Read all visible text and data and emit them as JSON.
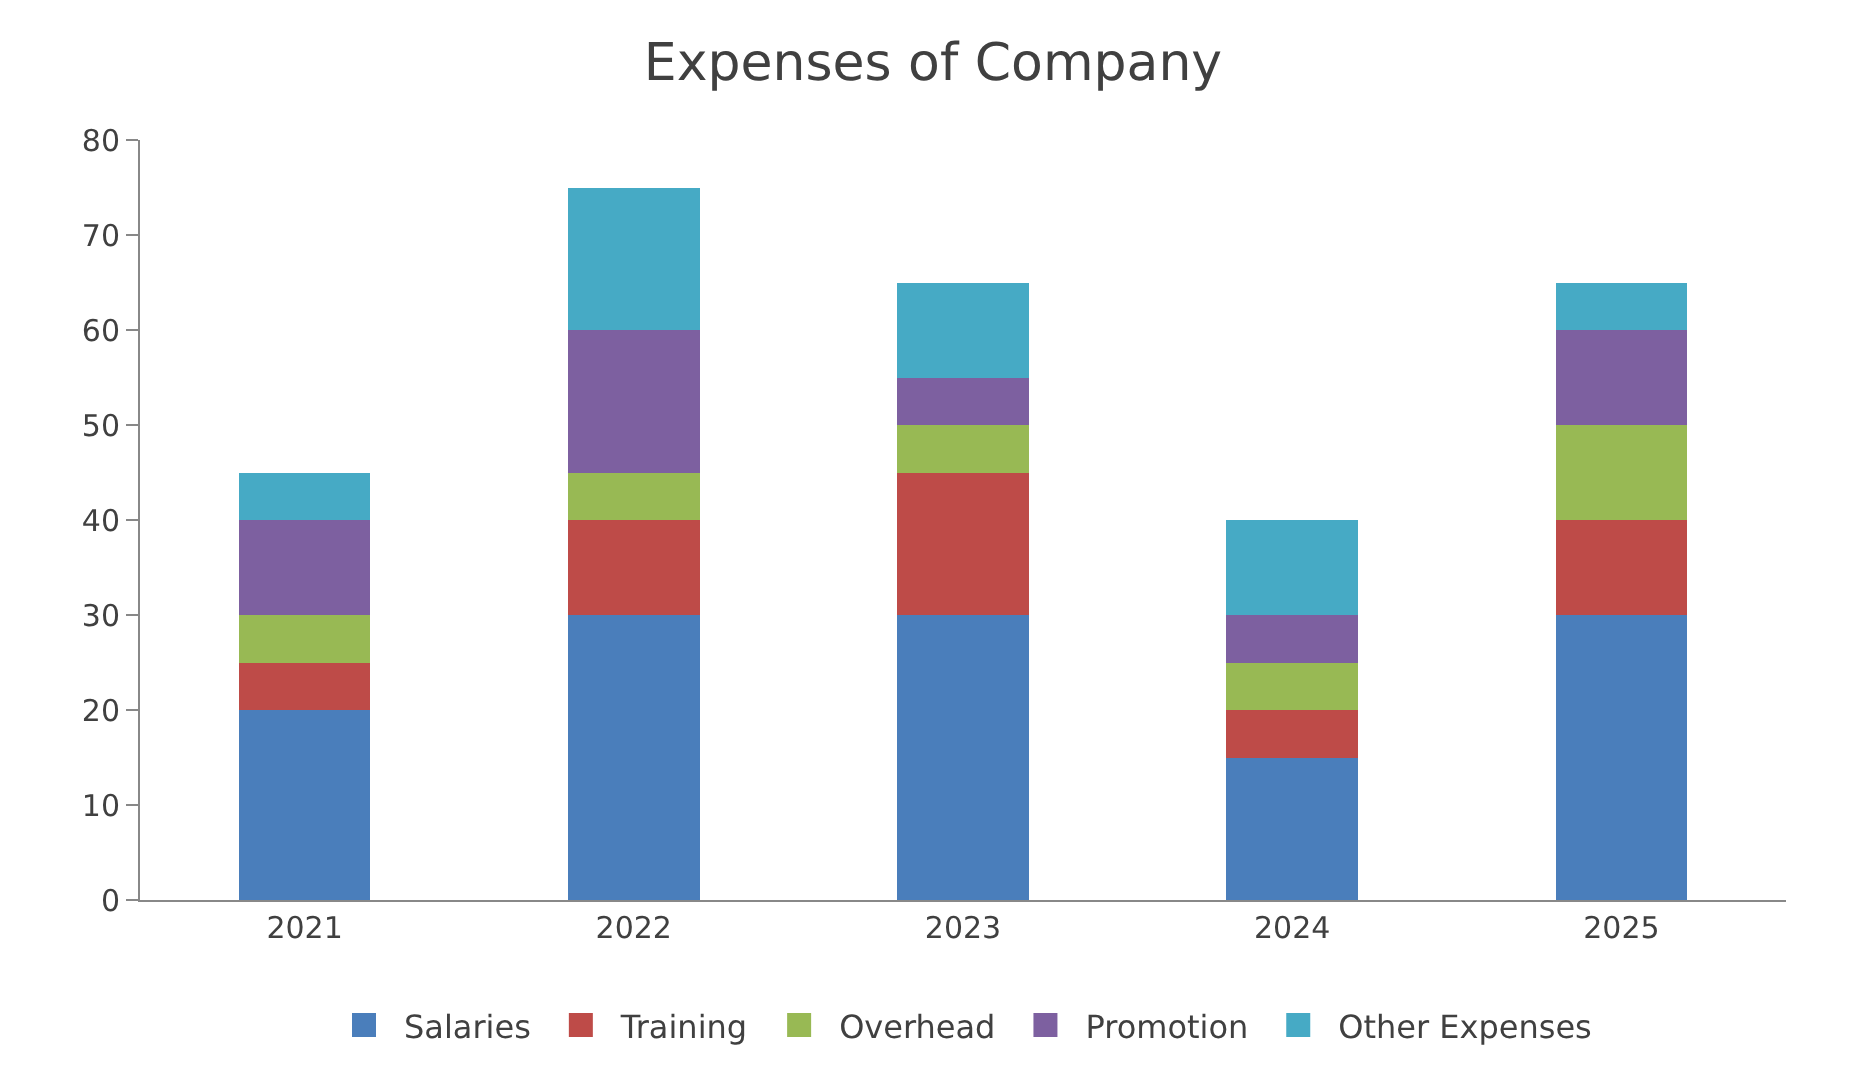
{
  "chart_data": {
    "type": "bar",
    "title": "Expenses of Company",
    "stacked": true,
    "categories": [
      "2021",
      "2022",
      "2023",
      "2024",
      "2025"
    ],
    "series": [
      {
        "name": "Salaries",
        "color": "#4a7ebb",
        "values": [
          20,
          30,
          30,
          15,
          30
        ]
      },
      {
        "name": "Training",
        "color": "#be4b48",
        "values": [
          5,
          10,
          15,
          5,
          10
        ]
      },
      {
        "name": "Overhead",
        "color": "#98b954",
        "values": [
          5,
          5,
          5,
          5,
          10
        ]
      },
      {
        "name": "Promotion",
        "color": "#7d60a0",
        "values": [
          10,
          15,
          5,
          5,
          10
        ]
      },
      {
        "name": "Other Expenses",
        "color": "#46aac5",
        "values": [
          5,
          15,
          10,
          10,
          5
        ]
      }
    ],
    "ylim": [
      0,
      80
    ],
    "yticks": [
      0,
      10,
      20,
      30,
      40,
      50,
      60,
      70,
      80
    ],
    "grid": false,
    "legend": "bottom"
  }
}
